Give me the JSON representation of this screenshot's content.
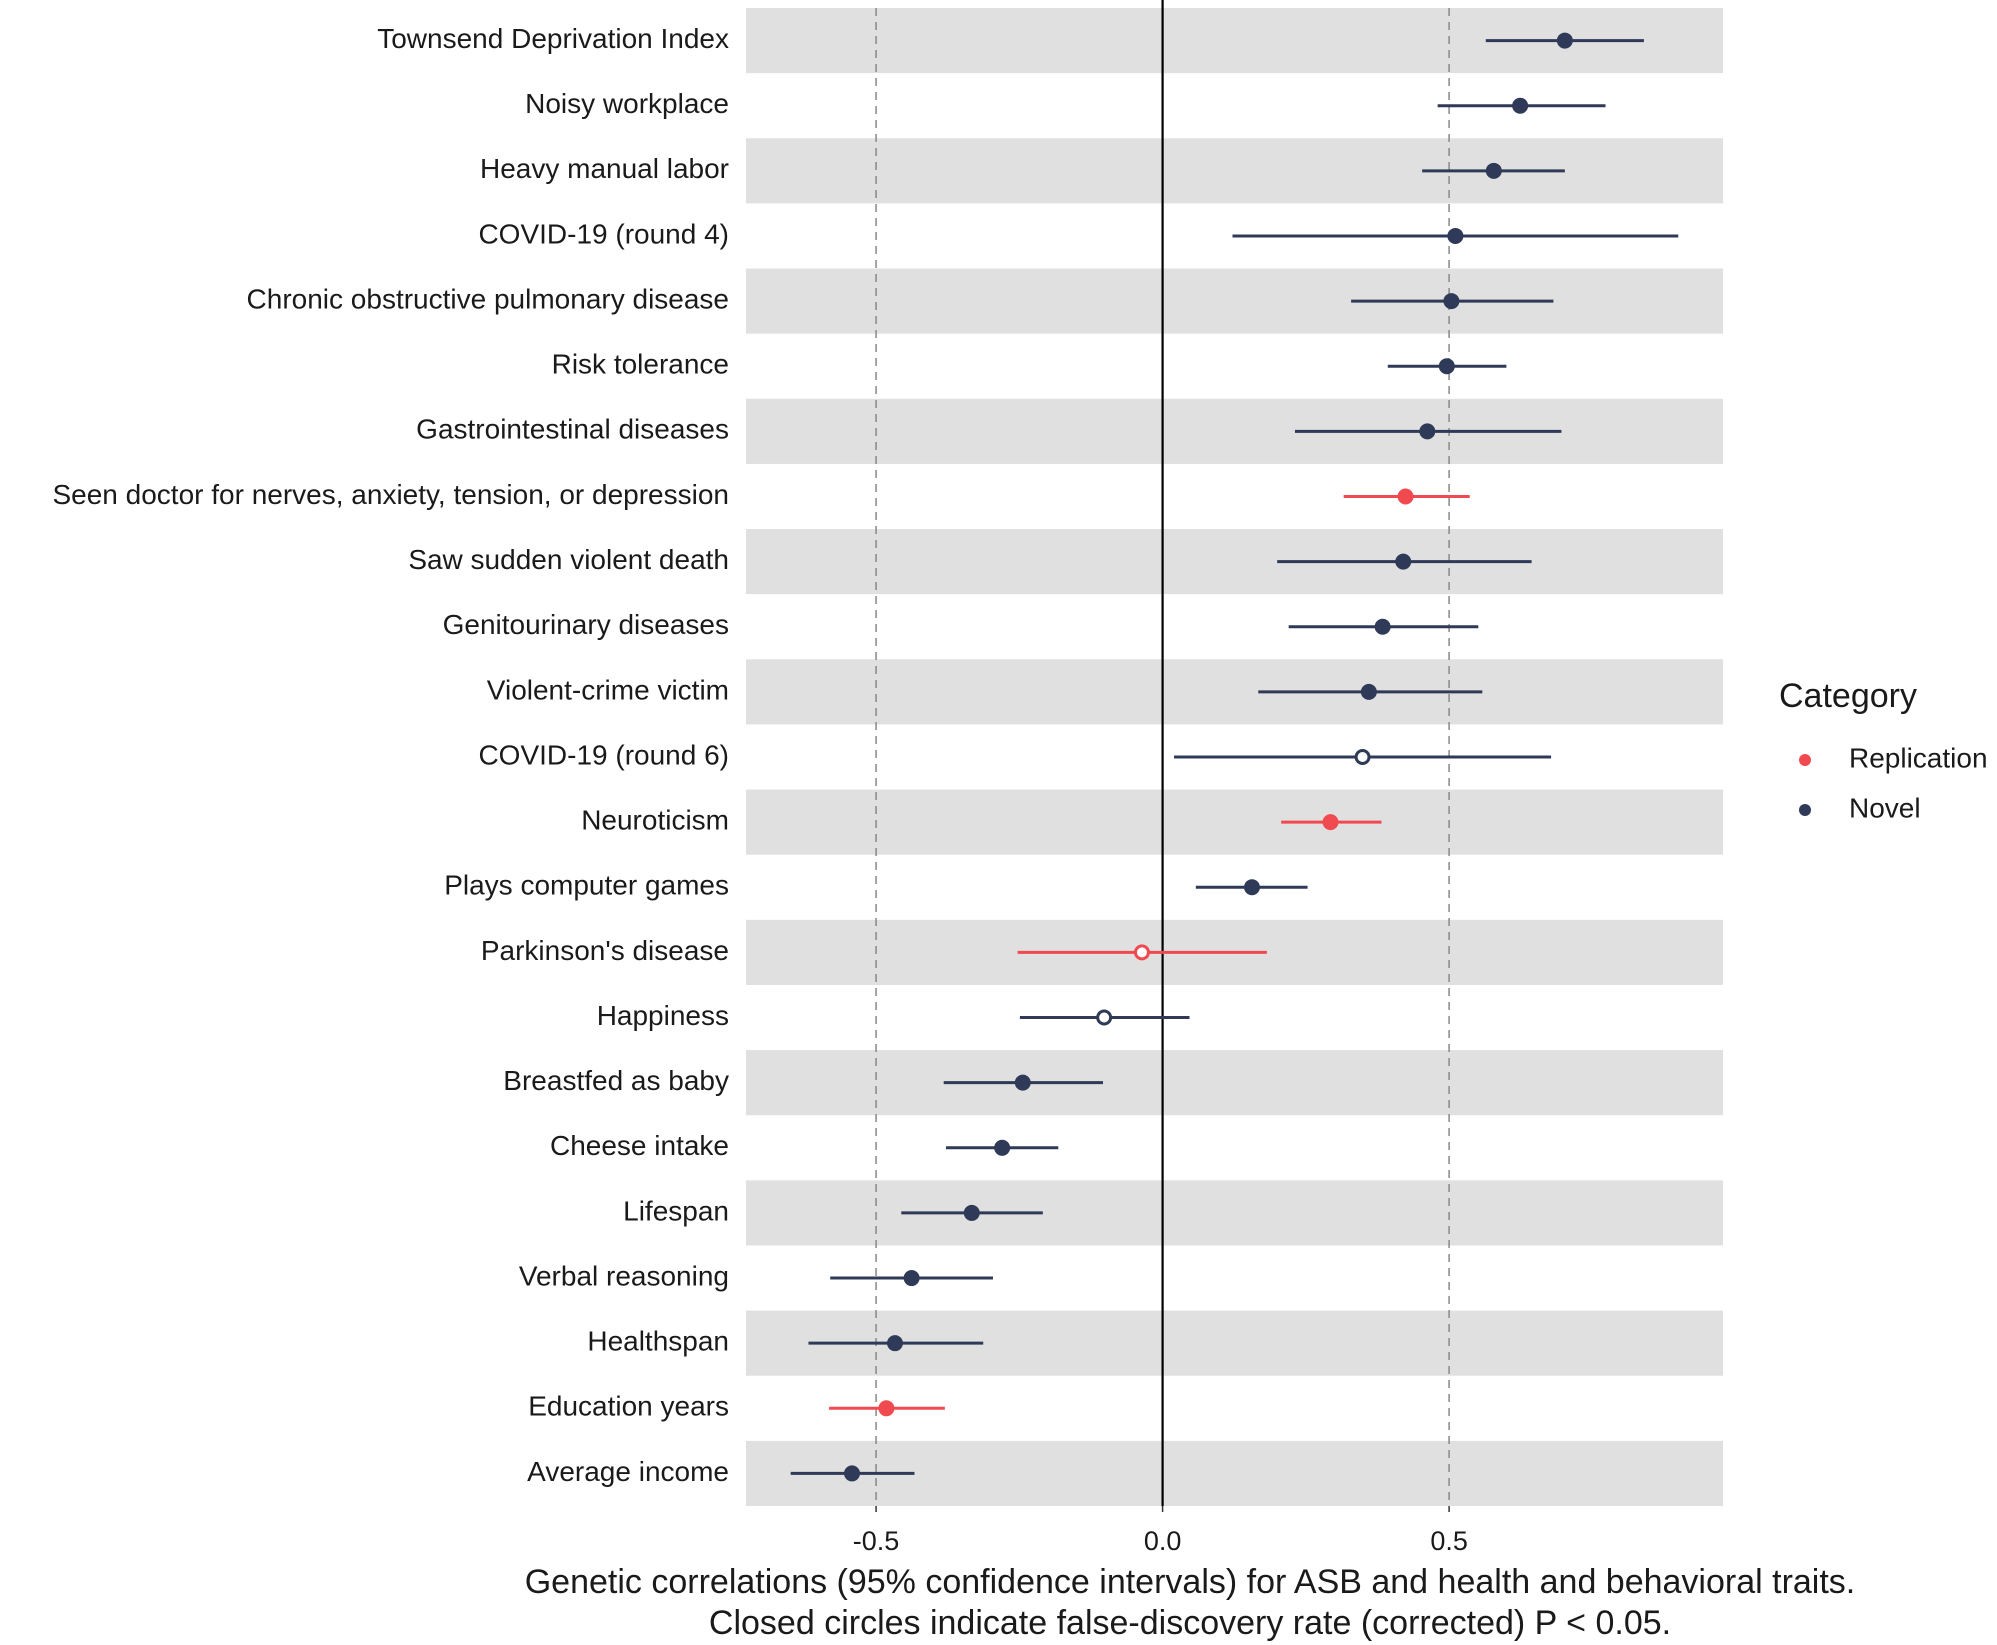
{
  "chart_data": {
    "type": "forest",
    "categories": [
      "Townsend Deprivation Index",
      "Noisy workplace",
      "Heavy manual labor",
      "COVID-19 (round 4)",
      "Chronic obstructive pulmonary disease",
      "Risk tolerance",
      "Gastrointestinal diseases",
      "Seen doctor for nerves, anxiety, tension, or depression",
      "Saw sudden violent death",
      "Genitourinary diseases",
      "Violent-crime victim",
      "COVID-19 (round 6)",
      "Neuroticism",
      "Plays computer games",
      "Parkinson's disease",
      "Happiness",
      "Breastfed as baby",
      "Cheese intake",
      "Lifespan",
      "Verbal reasoning",
      "Healthspan",
      "Education years",
      "Average income"
    ],
    "series": [
      {
        "name": "Replication",
        "color": "#f04a50",
        "values": [
          null,
          null,
          null,
          null,
          null,
          null,
          null,
          0.424,
          null,
          null,
          null,
          null,
          0.293,
          null,
          -0.036,
          null,
          null,
          null,
          null,
          null,
          null,
          -0.482,
          null
        ],
        "lower": [
          null,
          null,
          null,
          null,
          null,
          null,
          null,
          0.316,
          null,
          null,
          null,
          null,
          0.207,
          null,
          -0.253,
          null,
          null,
          null,
          null,
          null,
          null,
          -0.582,
          null
        ],
        "upper": [
          null,
          null,
          null,
          null,
          null,
          null,
          null,
          0.536,
          null,
          null,
          null,
          null,
          0.382,
          null,
          0.182,
          null,
          null,
          null,
          null,
          null,
          null,
          -0.38,
          null
        ],
        "closed": [
          null,
          null,
          null,
          null,
          null,
          null,
          null,
          true,
          null,
          null,
          null,
          null,
          true,
          null,
          false,
          null,
          null,
          null,
          null,
          null,
          null,
          true,
          null
        ]
      },
      {
        "name": "Novel",
        "color": "#2e3a57",
        "values": [
          0.702,
          0.624,
          0.578,
          0.511,
          0.504,
          0.496,
          0.462,
          null,
          0.42,
          0.384,
          0.36,
          0.349,
          null,
          0.156,
          null,
          -0.102,
          -0.244,
          -0.28,
          -0.333,
          -0.438,
          -0.467,
          null,
          -0.542
        ],
        "lower": [
          0.564,
          0.48,
          0.453,
          0.122,
          0.329,
          0.393,
          0.231,
          null,
          0.2,
          0.22,
          0.167,
          0.02,
          null,
          0.058,
          null,
          -0.249,
          -0.382,
          -0.378,
          -0.456,
          -0.58,
          -0.618,
          null,
          -0.649
        ],
        "upper": [
          0.84,
          0.773,
          0.702,
          0.9,
          0.682,
          0.6,
          0.696,
          null,
          0.644,
          0.551,
          0.558,
          0.678,
          null,
          0.253,
          null,
          0.047,
          -0.104,
          -0.182,
          -0.209,
          -0.296,
          -0.313,
          null,
          -0.433
        ],
        "closed": [
          true,
          true,
          true,
          true,
          true,
          true,
          true,
          null,
          true,
          true,
          true,
          false,
          null,
          true,
          null,
          false,
          true,
          true,
          true,
          true,
          true,
          null,
          true
        ]
      }
    ],
    "xlim": [
      -0.727,
      0.978
    ],
    "xticks": [
      -0.5,
      {
        "value": 0,
        "label": "0.0"
      },
      0.5
    ],
    "zero_line": 0,
    "dashed_lines": [
      -0.5,
      0.5
    ],
    "legend_title": "Category",
    "legend_position": "right",
    "caption": [
      "Genetic correlations (95% confidence intervals) for ASB and health and behavioral traits.",
      "Closed circles indicate false-discovery rate (corrected) P < 0.05."
    ]
  }
}
